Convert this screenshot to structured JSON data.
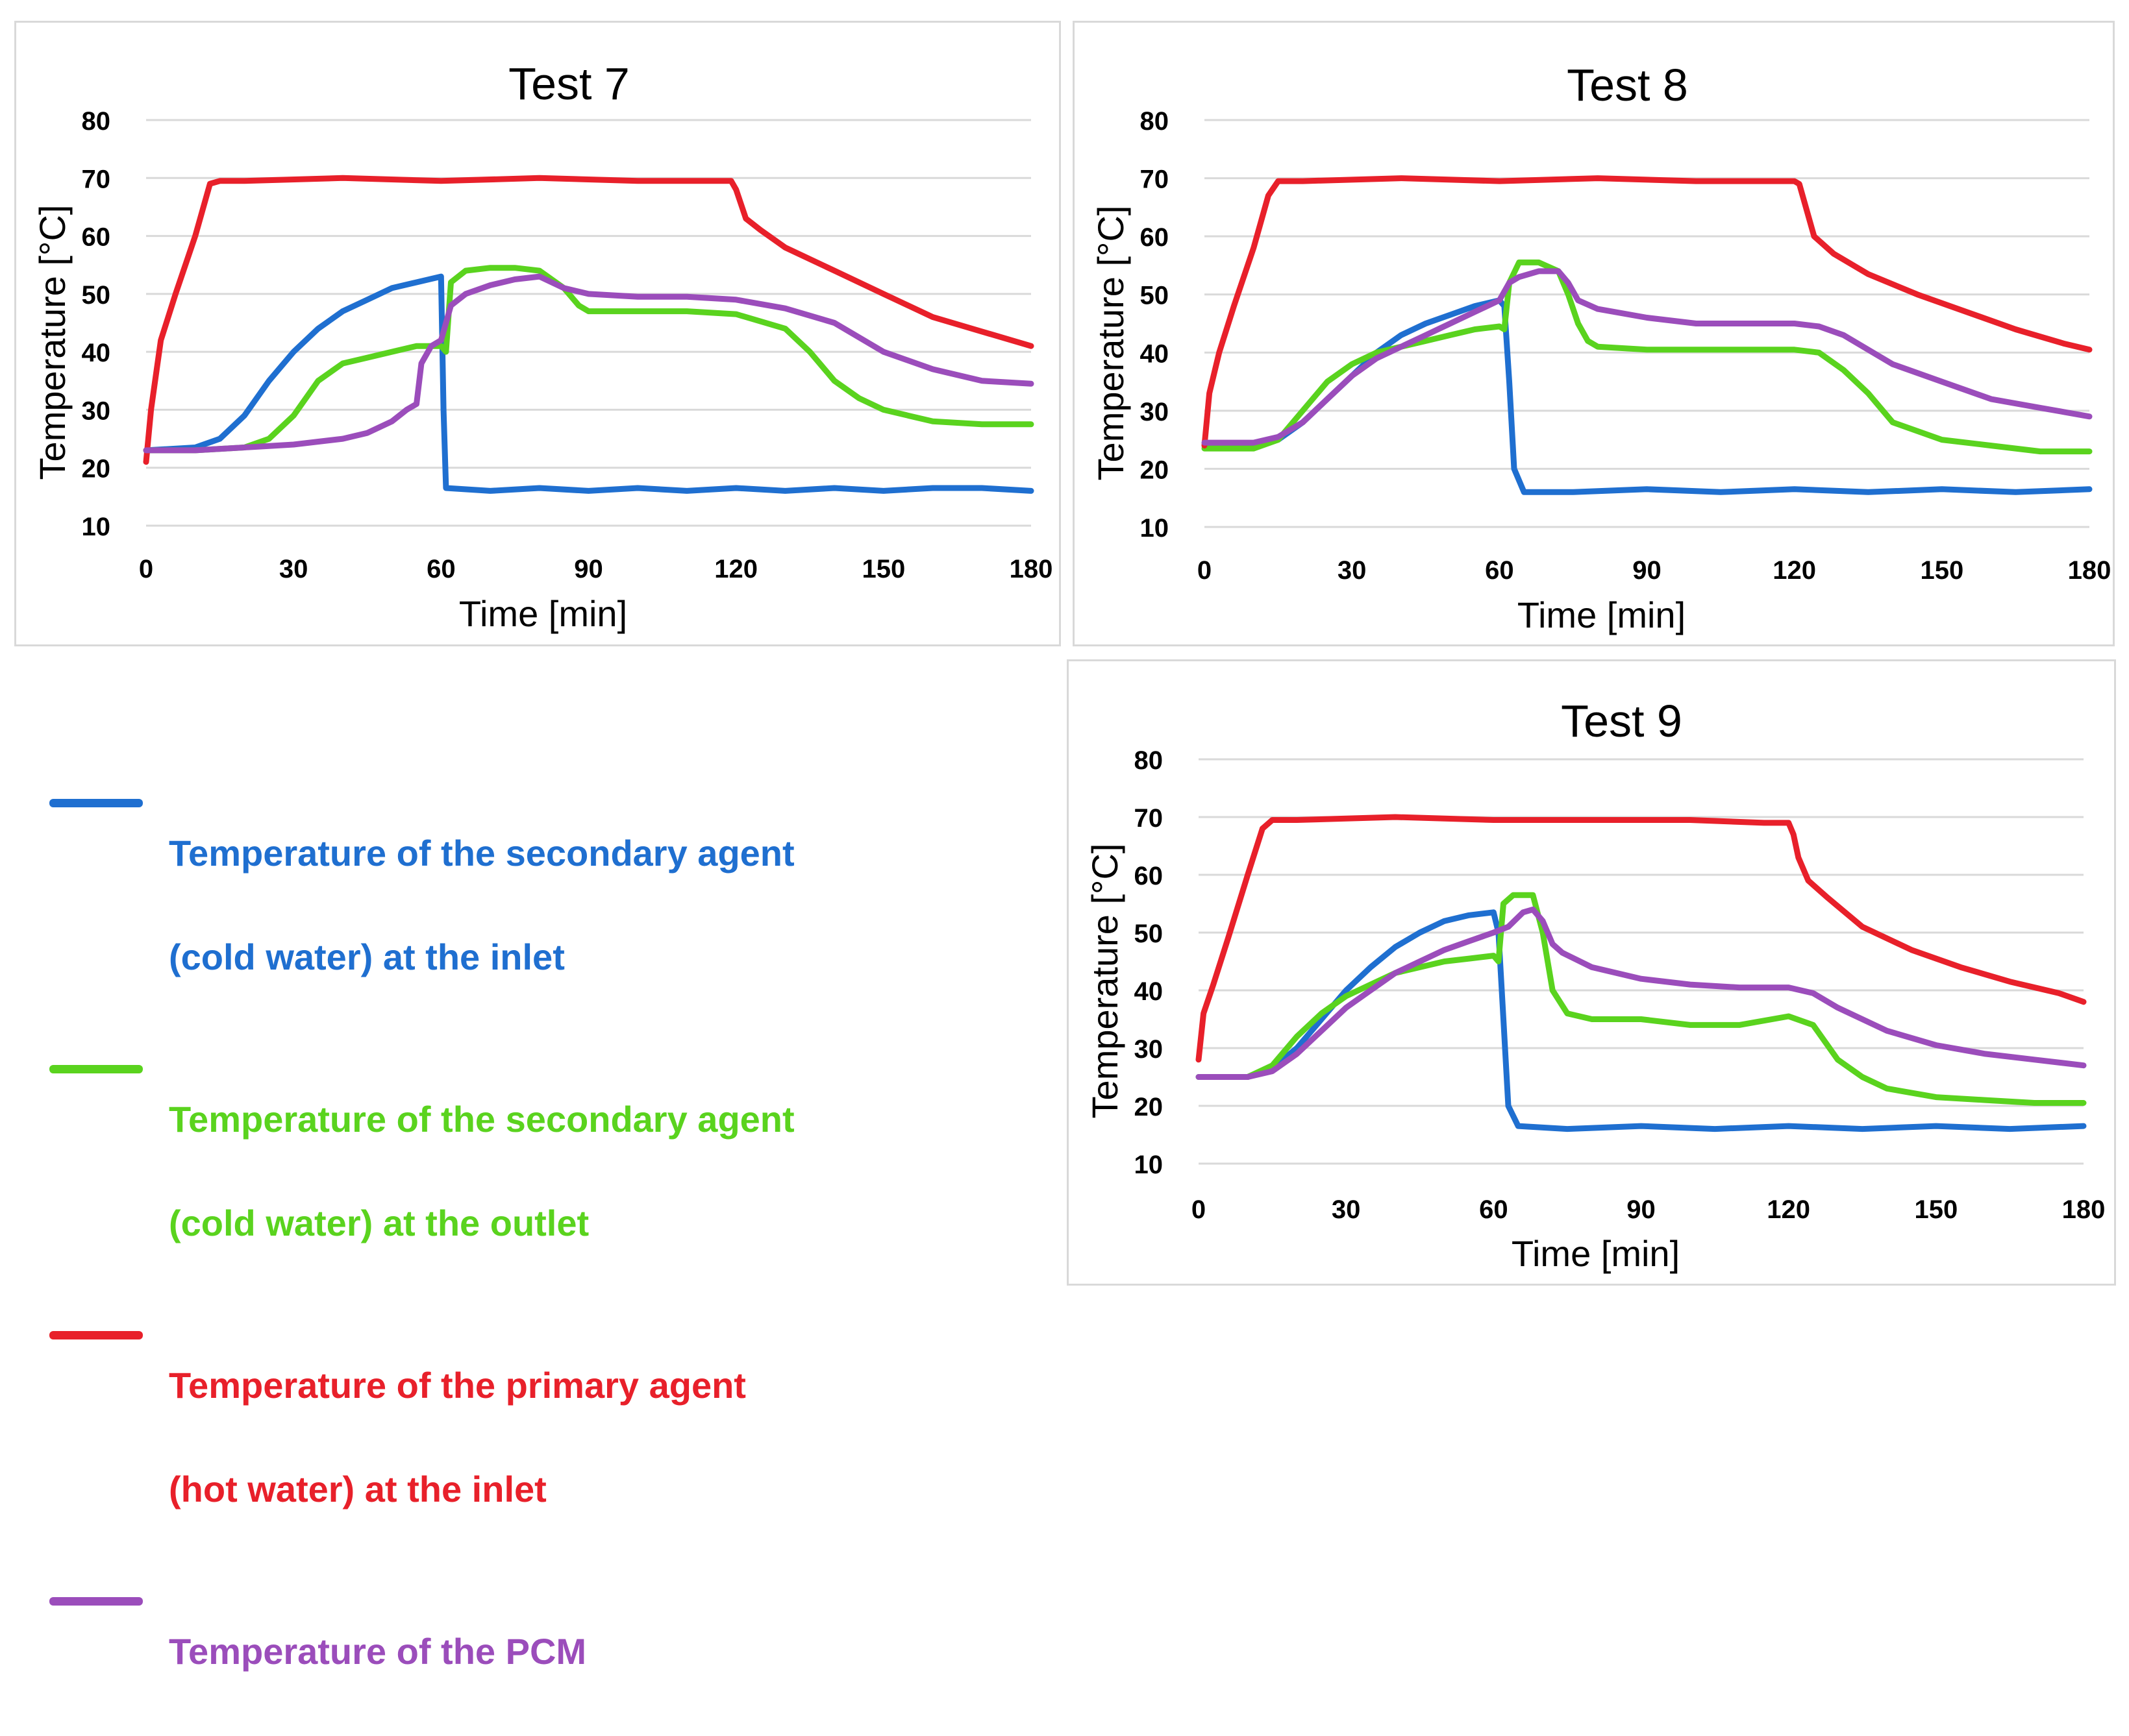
{
  "legend": [
    {
      "key": "inlet_secondary",
      "color": "#1f6fd0",
      "line1": "Temperature of the secondary agent",
      "line2": "(cold water) at the inlet"
    },
    {
      "key": "outlet_secondary",
      "color": "#5ad31e",
      "line1": "Temperature of the secondary agent",
      "line2": "(cold water) at the outlet"
    },
    {
      "key": "inlet_primary",
      "color": "#e8202a",
      "line1": "Temperature of the primary agent",
      "line2": "(hot water) at the inlet"
    },
    {
      "key": "pcm",
      "color": "#9b4dbb",
      "line1": "Temperature of the PCM",
      "line2": ""
    }
  ],
  "chart_data": [
    {
      "type": "line",
      "title": "Test 7",
      "xlabel": "Time [min]",
      "ylabel": "Temperature  [°C]",
      "xlim": [
        0,
        180
      ],
      "ylim": [
        10,
        80
      ],
      "xticks": [
        0,
        30,
        60,
        90,
        120,
        150,
        180
      ],
      "yticks": [
        10,
        20,
        30,
        40,
        50,
        60,
        70,
        80
      ],
      "grid": true,
      "series": [
        {
          "name": "Temperature of the secondary agent (cold water) at the inlet",
          "color": "#1f6fd0",
          "x": [
            0,
            10,
            15,
            20,
            25,
            30,
            35,
            40,
            45,
            50,
            55,
            60,
            60.5,
            61,
            70,
            80,
            90,
            100,
            110,
            120,
            130,
            140,
            150,
            160,
            170,
            180
          ],
          "y": [
            23,
            23.5,
            25,
            29,
            35,
            40,
            44,
            47,
            49,
            51,
            52,
            53,
            30,
            16.5,
            16,
            16.5,
            16,
            16.5,
            16,
            16.5,
            16,
            16.5,
            16,
            16.5,
            16.5,
            16
          ]
        },
        {
          "name": "Temperature of the secondary agent (cold water) at the outlet",
          "color": "#5ad31e",
          "x": [
            0,
            10,
            20,
            25,
            30,
            35,
            40,
            45,
            50,
            55,
            60,
            61,
            62,
            65,
            70,
            75,
            80,
            85,
            88,
            90,
            100,
            110,
            120,
            130,
            135,
            140,
            145,
            150,
            160,
            170,
            180
          ],
          "y": [
            23,
            23,
            23.5,
            25,
            29,
            35,
            38,
            39,
            40,
            41,
            41,
            40,
            52,
            54,
            54.5,
            54.5,
            54,
            51,
            48,
            47,
            47,
            47,
            46.5,
            44,
            40,
            35,
            32,
            30,
            28,
            27.5,
            27.5
          ]
        },
        {
          "name": "Temperature of the primary agent (hot water) at the inlet",
          "color": "#e8202a",
          "x": [
            0,
            1,
            3,
            6,
            10,
            13,
            15,
            20,
            40,
            60,
            80,
            100,
            115,
            119,
            120,
            122,
            125,
            130,
            140,
            150,
            160,
            170,
            180
          ],
          "y": [
            21,
            30,
            42,
            50,
            60,
            69,
            69.5,
            69.5,
            70,
            69.5,
            70,
            69.5,
            69.5,
            69.5,
            68,
            63,
            61,
            58,
            54,
            50,
            46,
            43.5,
            41
          ]
        },
        {
          "name": "Temperature of the PCM",
          "color": "#9b4dbb",
          "x": [
            0,
            10,
            20,
            30,
            40,
            45,
            50,
            53,
            55,
            56,
            58,
            60,
            62,
            65,
            70,
            75,
            80,
            85,
            90,
            100,
            110,
            120,
            130,
            140,
            150,
            160,
            170,
            180
          ],
          "y": [
            23,
            23,
            23.5,
            24,
            25,
            26,
            28,
            30,
            31,
            38,
            41,
            42,
            48,
            50,
            51.5,
            52.5,
            53,
            51,
            50,
            49.5,
            49.5,
            49,
            47.5,
            45,
            40,
            37,
            35,
            34.5
          ]
        }
      ]
    },
    {
      "type": "line",
      "title": "Test 8",
      "xlabel": "Time [min]",
      "ylabel": "Temperature  [°C]",
      "xlim": [
        0,
        180
      ],
      "ylim": [
        10,
        80
      ],
      "xticks": [
        0,
        30,
        60,
        90,
        120,
        150,
        180
      ],
      "yticks": [
        10,
        20,
        30,
        40,
        50,
        60,
        70,
        80
      ],
      "grid": true,
      "series": [
        {
          "name": "Temperature of the secondary agent (cold water) at the inlet",
          "color": "#1f6fd0",
          "x": [
            0,
            10,
            15,
            20,
            25,
            30,
            35,
            40,
            45,
            50,
            55,
            60,
            61,
            62,
            63,
            65,
            75,
            90,
            105,
            120,
            135,
            150,
            165,
            180
          ],
          "y": [
            24,
            24,
            25,
            28,
            32,
            36,
            40,
            43,
            45,
            46.5,
            48,
            49,
            48,
            35,
            20,
            16,
            16,
            16.5,
            16,
            16.5,
            16,
            16.5,
            16,
            16.5
          ]
        },
        {
          "name": "Temperature of the secondary agent (cold water) at the outlet",
          "color": "#5ad31e",
          "x": [
            0,
            10,
            15,
            20,
            25,
            30,
            35,
            40,
            45,
            50,
            55,
            60,
            61,
            62,
            64,
            68,
            72,
            74,
            76,
            78,
            80,
            90,
            100,
            110,
            120,
            125,
            130,
            135,
            140,
            150,
            160,
            170,
            180
          ],
          "y": [
            23.5,
            23.5,
            25,
            30,
            35,
            38,
            40,
            41,
            42,
            43,
            44,
            44.5,
            44,
            52,
            55.5,
            55.5,
            54,
            50,
            45,
            42,
            41,
            40.5,
            40.5,
            40.5,
            40.5,
            40,
            37,
            33,
            28,
            25,
            24,
            23,
            23
          ]
        },
        {
          "name": "Temperature of the primary agent (hot water) at the inlet",
          "color": "#e8202a",
          "x": [
            0,
            1,
            3,
            6,
            10,
            13,
            15,
            20,
            40,
            60,
            80,
            100,
            115,
            120,
            121,
            122,
            124,
            128,
            135,
            145,
            155,
            165,
            175,
            180
          ],
          "y": [
            24,
            33,
            40,
            48,
            58,
            67,
            69.5,
            69.5,
            70,
            69.5,
            70,
            69.5,
            69.5,
            69.5,
            69,
            66,
            60,
            57,
            53.5,
            50,
            47,
            44,
            41.5,
            40.5
          ]
        },
        {
          "name": "Temperature of the PCM",
          "color": "#9b4dbb",
          "x": [
            0,
            10,
            15,
            20,
            25,
            30,
            35,
            40,
            45,
            50,
            55,
            60,
            62,
            64,
            68,
            72,
            74,
            76,
            80,
            90,
            100,
            110,
            120,
            125,
            130,
            140,
            150,
            160,
            170,
            180
          ],
          "y": [
            24.5,
            24.5,
            25.5,
            28,
            32,
            36,
            39,
            41,
            43,
            45,
            47,
            49,
            52,
            53,
            54,
            54,
            52,
            49,
            47.5,
            46,
            45,
            45,
            45,
            44.5,
            43,
            38,
            35,
            32,
            30.5,
            29
          ]
        }
      ]
    },
    {
      "type": "line",
      "title": "Test 9",
      "xlabel": "Time [min]",
      "ylabel": "Temperature  [°C]",
      "xlim": [
        0,
        180
      ],
      "ylim": [
        10,
        80
      ],
      "xticks": [
        0,
        30,
        60,
        90,
        120,
        150,
        180
      ],
      "yticks": [
        10,
        20,
        30,
        40,
        50,
        60,
        70,
        80
      ],
      "grid": true,
      "series": [
        {
          "name": "Temperature of the secondary agent (cold water) at the inlet",
          "color": "#1f6fd0",
          "x": [
            0,
            10,
            15,
            20,
            25,
            30,
            35,
            40,
            45,
            50,
            55,
            60,
            61,
            62,
            63,
            65,
            75,
            90,
            105,
            120,
            135,
            150,
            165,
            180
          ],
          "y": [
            25,
            25,
            26.5,
            30,
            35,
            40,
            44,
            47.5,
            50,
            52,
            53,
            53.5,
            50,
            35,
            20,
            16.5,
            16,
            16.5,
            16,
            16.5,
            16,
            16.5,
            16,
            16.5
          ]
        },
        {
          "name": "Temperature of the secondary agent (cold water) at the outlet",
          "color": "#5ad31e",
          "x": [
            0,
            10,
            15,
            20,
            25,
            30,
            35,
            40,
            45,
            50,
            55,
            60,
            61,
            62,
            64,
            68,
            70,
            72,
            75,
            80,
            90,
            100,
            110,
            120,
            125,
            130,
            135,
            140,
            150,
            160,
            170,
            180
          ],
          "y": [
            25,
            25,
            27,
            32,
            36,
            39,
            41,
            43,
            44,
            45,
            45.5,
            46,
            45,
            55,
            56.5,
            56.5,
            50,
            40,
            36,
            35,
            35,
            34,
            34,
            35.5,
            34,
            28,
            25,
            23,
            21.5,
            21,
            20.5,
            20.5
          ]
        },
        {
          "name": "Temperature of the primary agent (hot water) at the inlet",
          "color": "#e8202a",
          "x": [
            0,
            1,
            3,
            6,
            10,
            13,
            15,
            20,
            40,
            60,
            80,
            100,
            115,
            120,
            121,
            122,
            124,
            128,
            135,
            145,
            155,
            165,
            175,
            180
          ],
          "y": [
            28,
            36,
            41,
            49,
            60,
            68,
            69.5,
            69.5,
            70,
            69.5,
            69.5,
            69.5,
            69,
            69,
            67,
            63,
            59,
            56,
            51,
            47,
            44,
            41.5,
            39.5,
            38
          ]
        },
        {
          "name": "Temperature of the PCM",
          "color": "#9b4dbb",
          "x": [
            0,
            10,
            15,
            20,
            25,
            30,
            35,
            40,
            45,
            50,
            55,
            60,
            63,
            66,
            68,
            70,
            72,
            74,
            80,
            90,
            100,
            110,
            120,
            125,
            130,
            140,
            150,
            160,
            170,
            180
          ],
          "y": [
            25,
            25,
            26,
            29,
            33,
            37,
            40,
            43,
            45,
            47,
            48.5,
            50,
            51,
            53.5,
            54,
            52,
            48,
            46.5,
            44,
            42,
            41,
            40.5,
            40.5,
            39.5,
            37,
            33,
            30.5,
            29,
            28,
            27
          ]
        }
      ]
    }
  ]
}
